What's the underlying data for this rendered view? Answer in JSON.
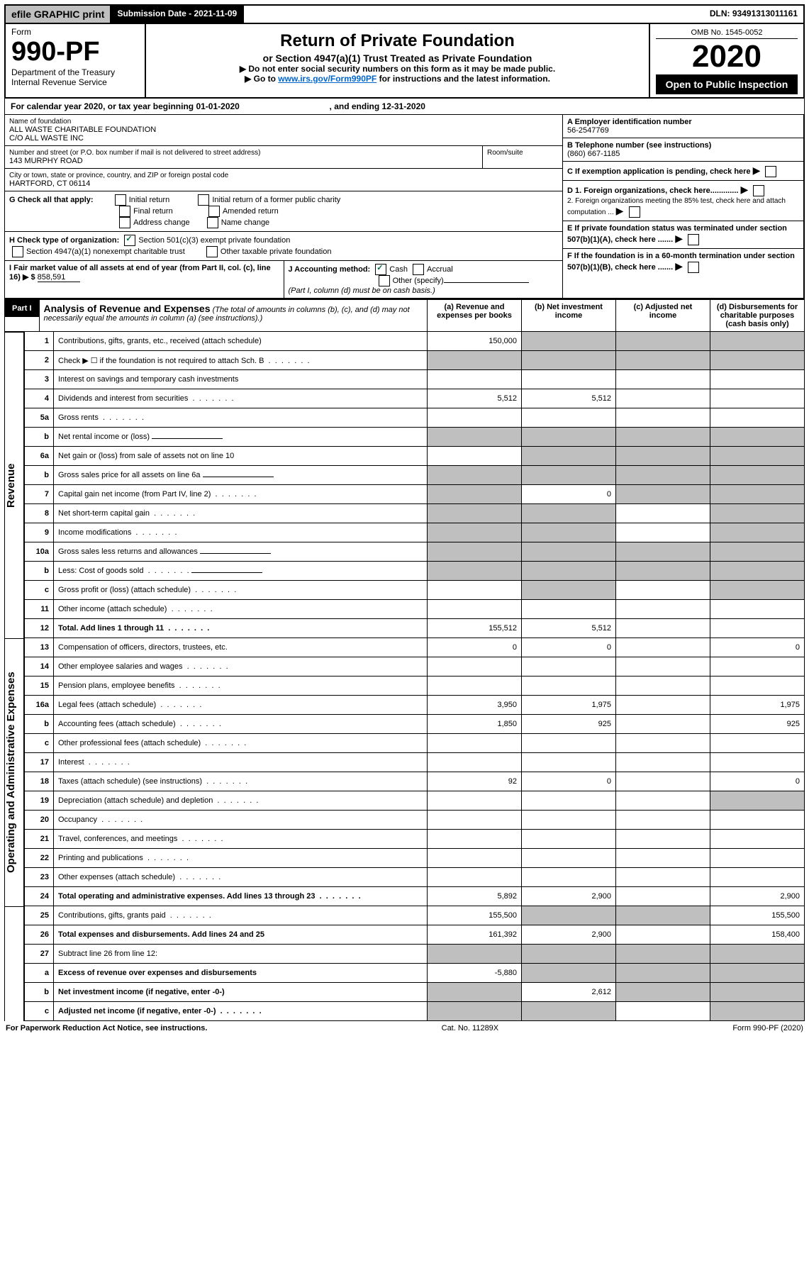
{
  "top": {
    "efile": "efile GRAPHIC print",
    "subdate_label": "Submission Date - 2021-11-09",
    "dln": "DLN: 93491313011161"
  },
  "header": {
    "form_label": "Form",
    "form_no": "990-PF",
    "dept": "Department of the Treasury",
    "irs": "Internal Revenue Service",
    "title": "Return of Private Foundation",
    "subtitle": "or Section 4947(a)(1) Trust Treated as Private Foundation",
    "note1": "▶ Do not enter social security numbers on this form as it may be made public.",
    "note2_pre": "▶ Go to ",
    "note2_link": "www.irs.gov/Form990PF",
    "note2_post": " for instructions and the latest information.",
    "omb": "OMB No. 1545-0052",
    "year": "2020",
    "open": "Open to Public Inspection"
  },
  "cal": {
    "text_a": "For calendar year 2020, or tax year beginning ",
    "begin": "01-01-2020",
    "text_b": ", and ending ",
    "end": "12-31-2020"
  },
  "id": {
    "name_lbl": "Name of foundation",
    "name1": "ALL WASTE CHARITABLE FOUNDATION",
    "name2": "C/O ALL WASTE INC",
    "addr_lbl": "Number and street (or P.O. box number if mail is not delivered to street address)",
    "addr": "143 MURPHY ROAD",
    "room_lbl": "Room/suite",
    "city_lbl": "City or town, state or province, country, and ZIP or foreign postal code",
    "city": "HARTFORD, CT  06114",
    "A_lbl": "A Employer identification number",
    "A": "56-2547769",
    "B_lbl": "B Telephone number (see instructions)",
    "B": "(860) 667-1185",
    "C": "C If exemption application is pending, check here",
    "D1": "D 1. Foreign organizations, check here.............",
    "D2": "2. Foreign organizations meeting the 85% test, check here and attach computation ...",
    "E": "E If private foundation status was terminated under section 507(b)(1)(A), check here .......",
    "F": "F If the foundation is in a 60-month termination under section 507(b)(1)(B), check here .......",
    "G_lbl": "G Check all that apply:",
    "G_opts": [
      "Initial return",
      "Final return",
      "Address change",
      "Initial return of a former public charity",
      "Amended return",
      "Name change"
    ],
    "H_lbl": "H Check type of organization:",
    "H1": "Section 501(c)(3) exempt private foundation",
    "H2": "Section 4947(a)(1) nonexempt charitable trust",
    "H3": "Other taxable private foundation",
    "I_lbl": "I Fair market value of all assets at end of year (from Part II, col. (c), line 16) ▶ $",
    "I_val": "858,591",
    "J_lbl": "J Accounting method:",
    "J1": "Cash",
    "J2": "Accrual",
    "J3": "Other (specify)",
    "J_note": "(Part I, column (d) must be on cash basis.)"
  },
  "part1": {
    "label": "Part I",
    "title": "Analysis of Revenue and Expenses",
    "italic": "(The total of amounts in columns (b), (c), and (d) may not necessarily equal the amounts in column (a) (see instructions).)",
    "cols": [
      "(a) Revenue and expenses per books",
      "(b) Net investment income",
      "(c) Adjusted net income",
      "(d) Disbursements for charitable purposes (cash basis only)"
    ]
  },
  "sections": {
    "rev": "Revenue",
    "opx": "Operating and Administrative Expenses"
  },
  "rows": [
    {
      "n": "1",
      "d": "Contributions, gifts, grants, etc., received (attach schedule)",
      "a": "150,000",
      "gb": true,
      "gc": true,
      "gd": true
    },
    {
      "n": "2",
      "d": "Check ▶ ☐ if the foundation is not required to attach Sch. B",
      "ga": true,
      "gb": true,
      "gc": true,
      "gd": true,
      "dots": true,
      "bold_not": true
    },
    {
      "n": "3",
      "d": "Interest on savings and temporary cash investments"
    },
    {
      "n": "4",
      "d": "Dividends and interest from securities",
      "a": "5,512",
      "b": "5,512",
      "dots": true
    },
    {
      "n": "5a",
      "d": "Gross rents",
      "dots": true
    },
    {
      "n": "b",
      "d": "Net rental income or (loss)",
      "inline_box": true,
      "gb": true,
      "gc": true,
      "gd": true,
      "ga": true
    },
    {
      "n": "6a",
      "d": "Net gain or (loss) from sale of assets not on line 10",
      "gb": true,
      "gc": true,
      "gd": true
    },
    {
      "n": "b",
      "d": "Gross sales price for all assets on line 6a",
      "inline_box": true,
      "ga": true,
      "gb": true,
      "gc": true,
      "gd": true
    },
    {
      "n": "7",
      "d": "Capital gain net income (from Part IV, line 2)",
      "b": "0",
      "ga": true,
      "gc": true,
      "gd": true,
      "dots": true
    },
    {
      "n": "8",
      "d": "Net short-term capital gain",
      "ga": true,
      "gb": true,
      "gd": true,
      "dots": true
    },
    {
      "n": "9",
      "d": "Income modifications",
      "ga": true,
      "gb": true,
      "gd": true,
      "dots": true
    },
    {
      "n": "10a",
      "d": "Gross sales less returns and allowances",
      "inline_box": true,
      "ga": true,
      "gb": true,
      "gc": true,
      "gd": true
    },
    {
      "n": "b",
      "d": "Less: Cost of goods sold",
      "inline_box": true,
      "ga": true,
      "gb": true,
      "gc": true,
      "gd": true,
      "dots": true
    },
    {
      "n": "c",
      "d": "Gross profit or (loss) (attach schedule)",
      "gb": true,
      "gd": true,
      "dots": true
    },
    {
      "n": "11",
      "d": "Other income (attach schedule)",
      "dots": true
    },
    {
      "n": "12",
      "d": "Total. Add lines 1 through 11",
      "a": "155,512",
      "b": "5,512",
      "bold": true,
      "dots": true
    },
    {
      "n": "13",
      "d": "Compensation of officers, directors, trustees, etc.",
      "a": "0",
      "b": "0",
      "d2": "0"
    },
    {
      "n": "14",
      "d": "Other employee salaries and wages",
      "dots": true
    },
    {
      "n": "15",
      "d": "Pension plans, employee benefits",
      "dots": true
    },
    {
      "n": "16a",
      "d": "Legal fees (attach schedule)",
      "a": "3,950",
      "b": "1,975",
      "d2": "1,975",
      "dots": true
    },
    {
      "n": "b",
      "d": "Accounting fees (attach schedule)",
      "a": "1,850",
      "b": "925",
      "d2": "925",
      "dots": true
    },
    {
      "n": "c",
      "d": "Other professional fees (attach schedule)",
      "dots": true
    },
    {
      "n": "17",
      "d": "Interest",
      "dots": true
    },
    {
      "n": "18",
      "d": "Taxes (attach schedule) (see instructions)",
      "a": "92",
      "b": "0",
      "d2": "0",
      "dots": true
    },
    {
      "n": "19",
      "d": "Depreciation (attach schedule) and depletion",
      "gd": true,
      "dots": true
    },
    {
      "n": "20",
      "d": "Occupancy",
      "dots": true
    },
    {
      "n": "21",
      "d": "Travel, conferences, and meetings",
      "dots": true
    },
    {
      "n": "22",
      "d": "Printing and publications",
      "dots": true
    },
    {
      "n": "23",
      "d": "Other expenses (attach schedule)",
      "dots": true
    },
    {
      "n": "24",
      "d": "Total operating and administrative expenses. Add lines 13 through 23",
      "a": "5,892",
      "b": "2,900",
      "d2": "2,900",
      "bold": true,
      "dots": true,
      "twoLine": true
    },
    {
      "n": "25",
      "d": "Contributions, gifts, grants paid",
      "a": "155,500",
      "d2": "155,500",
      "gb": true,
      "gc": true,
      "dots": true
    },
    {
      "n": "26",
      "d": "Total expenses and disbursements. Add lines 24 and 25",
      "a": "161,392",
      "b": "2,900",
      "d2": "158,400",
      "bold": true
    },
    {
      "n": "27",
      "d": "Subtract line 26 from line 12:",
      "ga": true,
      "gb": true,
      "gc": true,
      "gd": true
    },
    {
      "n": "a",
      "d": "Excess of revenue over expenses and disbursements",
      "a": "-5,880",
      "bold": true,
      "gb": true,
      "gc": true,
      "gd": true
    },
    {
      "n": "b",
      "d": "Net investment income (if negative, enter -0-)",
      "b": "2,612",
      "bold": true,
      "ga": true,
      "gc": true,
      "gd": true
    },
    {
      "n": "c",
      "d": "Adjusted net income (if negative, enter -0-)",
      "bold": true,
      "ga": true,
      "gb": true,
      "gd": true,
      "dots": true
    }
  ],
  "foot": {
    "left": "For Paperwork Reduction Act Notice, see instructions.",
    "mid": "Cat. No. 11289X",
    "right": "Form 990-PF (2020)"
  },
  "colors": {
    "gray": "#bfbfbf",
    "green": "#006b3f",
    "link": "#0066cc"
  }
}
